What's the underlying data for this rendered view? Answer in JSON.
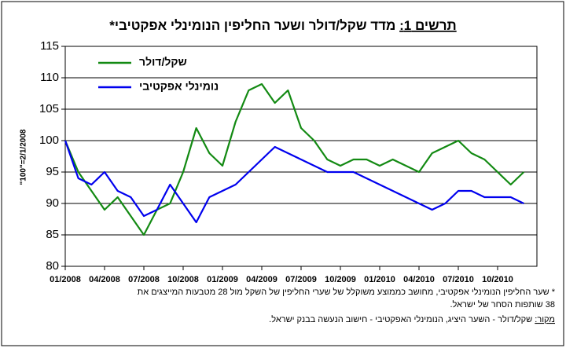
{
  "chart_data": {
    "type": "line",
    "title_prefix": "תרשים 1:",
    "title": "מדד שקל/דולר ושער החליפין הנומינלי אפקטיבי*",
    "y_label": "\"100\"=2/1/2008",
    "x": [
      "01/2008",
      "02/2008",
      "03/2008",
      "04/2008",
      "05/2008",
      "06/2008",
      "07/2008",
      "08/2008",
      "09/2008",
      "10/2008",
      "11/2008",
      "12/2008",
      "01/2009",
      "02/2009",
      "03/2009",
      "04/2009",
      "05/2009",
      "06/2009",
      "07/2009",
      "08/2009",
      "09/2009",
      "10/2009",
      "11/2009",
      "12/2009",
      "01/2010",
      "02/2010",
      "03/2010",
      "04/2010",
      "05/2010",
      "06/2010",
      "07/2010",
      "08/2010",
      "09/2010",
      "10/2010",
      "11/2010",
      "12/2010"
    ],
    "xticks": [
      "01/2008",
      "04/2008",
      "07/2008",
      "10/2008",
      "01/2009",
      "04/2009",
      "07/2009",
      "10/2009",
      "01/2010",
      "04/2010",
      "07/2010",
      "10/2010"
    ],
    "series": [
      {
        "name": "שקל/דולר",
        "color": "#138a13",
        "values": [
          100,
          95,
          92,
          89,
          91,
          88,
          85,
          89,
          90,
          95,
          102,
          98,
          96,
          103,
          108,
          109,
          106,
          108,
          102,
          100,
          97,
          96,
          97,
          97,
          96,
          97,
          96,
          95,
          98,
          99,
          100,
          98,
          97,
          95,
          93,
          95
        ]
      },
      {
        "name": "נומינלי אפקטיבי",
        "color": "#0000ee",
        "values": [
          100,
          94,
          93,
          95,
          92,
          91,
          88,
          89,
          93,
          90,
          87,
          91,
          92,
          93,
          95,
          97,
          99,
          98,
          97,
          96,
          95,
          95,
          95,
          94,
          93,
          92,
          91,
          90,
          89,
          90,
          92,
          92,
          91,
          91,
          91,
          90
        ]
      }
    ],
    "ylim": [
      80,
      115
    ],
    "yticks": [
      80,
      85,
      90,
      95,
      100,
      105,
      110,
      115
    ],
    "grid": true,
    "legend": "upper-left",
    "footnote": [
      "* שער החליפין הנומינלי אפקטיבי, מחושב כממוצע משוקלל של שערי החליפין של השקל מול 28 מטבעות המייצגים את",
      "38 שותפות הסחר של ישראל."
    ],
    "source_label": "מקור:",
    "source": "שקל/דולר - השער היציג, הנומינלי האפקטיבי - חישוב הנעשה בבנק ישראל."
  }
}
